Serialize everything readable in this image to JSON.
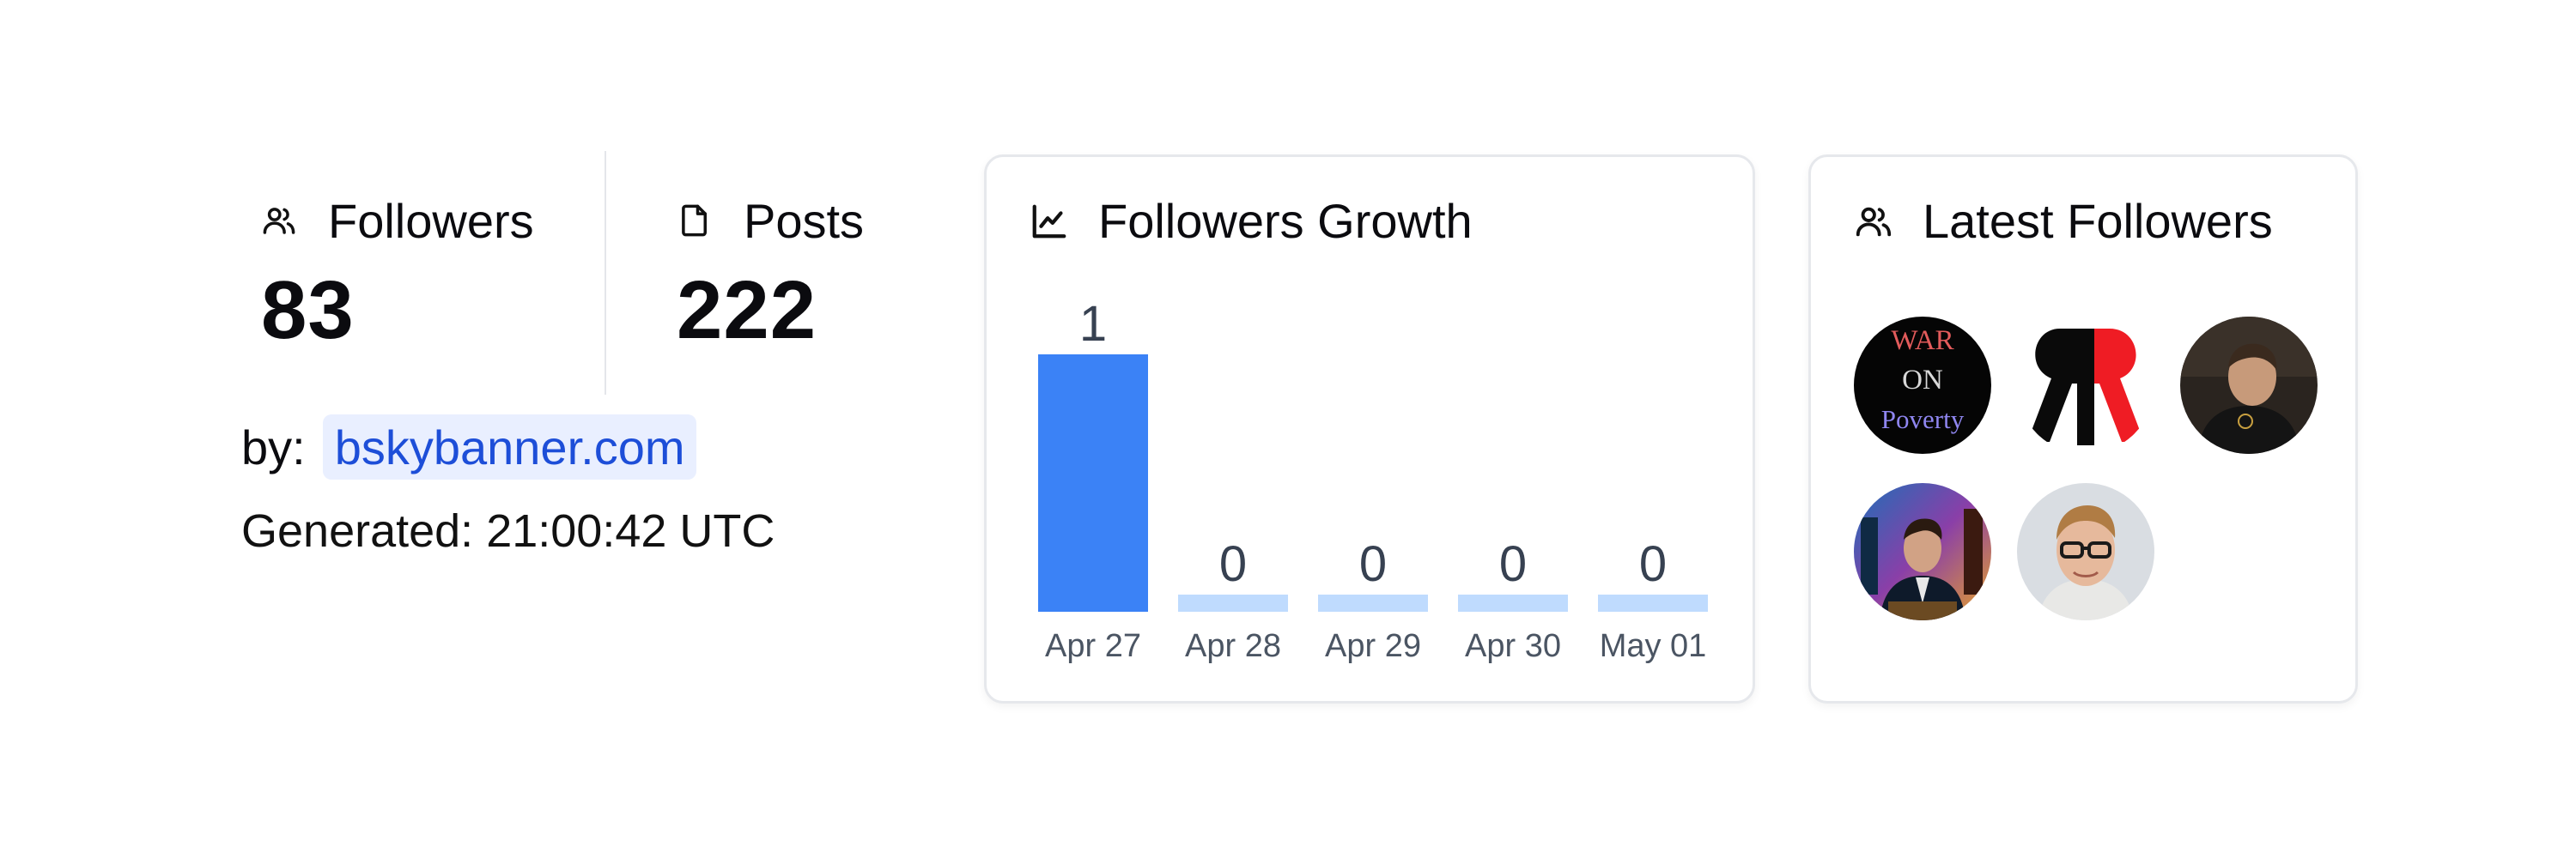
{
  "stats": {
    "followers": {
      "label": "Followers",
      "value": "83"
    },
    "posts": {
      "label": "Posts",
      "value": "222"
    }
  },
  "by": {
    "label": "by:",
    "link": "bskybanner.com"
  },
  "generated": "Generated: 21:00:42 UTC",
  "growth_card": {
    "title": "Followers Growth"
  },
  "chart_data": {
    "type": "bar",
    "title": "Followers Growth",
    "categories": [
      "Apr 27",
      "Apr 28",
      "Apr 29",
      "Apr 30",
      "May 01"
    ],
    "values": [
      1,
      0,
      0,
      0,
      0
    ],
    "ylim": [
      0,
      1
    ],
    "grid": false,
    "colors": {
      "highlight": "#3b82f6",
      "base": "#bfdbfe",
      "label": "#374151",
      "tick": "#4b5563"
    }
  },
  "latest_card": {
    "title": "Latest Followers",
    "followers": [
      {
        "icon": "war-on-poverty-avatar",
        "text_lines": [
          "WAR",
          "ON",
          "Poverty"
        ]
      },
      {
        "icon": "rr-logo-avatar"
      },
      {
        "icon": "man-dark-shirt-avatar"
      },
      {
        "icon": "man-suit-city-avatar"
      },
      {
        "icon": "man-glasses-avatar"
      }
    ]
  }
}
